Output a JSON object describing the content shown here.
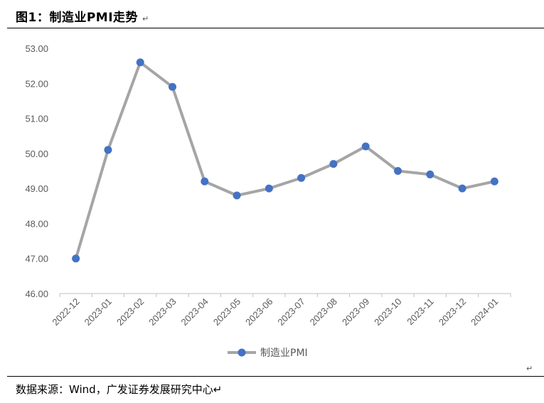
{
  "figure": {
    "title": "图1：制造业PMI走势",
    "title_mark": "↵",
    "source": "数据来源：Wind，广发证券发展研究中心↵",
    "stray_mark": "↵"
  },
  "chart_data": {
    "type": "line",
    "categories": [
      "2022-12",
      "2023-01",
      "2023-02",
      "2023-03",
      "2023-04",
      "2023-05",
      "2023-06",
      "2023-07",
      "2023-08",
      "2023-09",
      "2023-10",
      "2023-11",
      "2023-12",
      "2024-01"
    ],
    "series": [
      {
        "name": "制造业PMI",
        "values": [
          47.0,
          50.1,
          52.6,
          51.9,
          49.2,
          48.8,
          49.0,
          49.3,
          49.7,
          50.2,
          49.5,
          49.4,
          49.0,
          49.2
        ]
      }
    ],
    "ylim": [
      46,
      53
    ],
    "yticks": [
      "46.00",
      "47.00",
      "48.00",
      "49.00",
      "50.00",
      "51.00",
      "52.00",
      "53.00"
    ],
    "grid": false,
    "legend": "bottom-center",
    "colors": {
      "line": "#A5A5A5",
      "marker": "#4472C4",
      "axis": "#BFBFBF",
      "text": "#595959"
    }
  }
}
